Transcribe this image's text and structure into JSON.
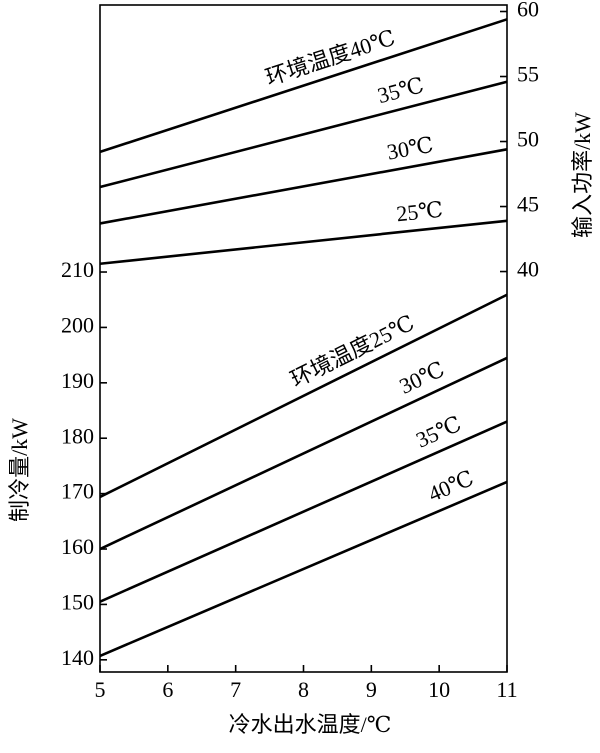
{
  "chart_data": {
    "type": "line",
    "x_label": "冷水出水温度/℃",
    "y_label": "制冷量/kW",
    "y2_label": "输入功率/kW",
    "x": [
      5,
      11
    ],
    "xlim": [
      5,
      11
    ],
    "xticks": [
      5,
      6,
      7,
      8,
      9,
      10,
      11
    ],
    "ylim": [
      137.8,
      258.2
    ],
    "yticks": [
      140,
      150,
      160,
      170,
      180,
      190,
      200,
      210
    ],
    "y2lim": [
      9.2,
      60.5
    ],
    "y2ticks": [
      40,
      45,
      50,
      55,
      60
    ],
    "series": [
      {
        "name": "环境温度40℃",
        "color": "#000000",
        "axis": "y2",
        "values": [
          49.2,
          59.4
        ]
      },
      {
        "name": "35℃",
        "color": "#000000",
        "axis": "y2",
        "values": [
          46.5,
          54.6
        ]
      },
      {
        "name": "30℃",
        "color": "#000000",
        "axis": "y2",
        "values": [
          43.7,
          49.4
        ]
      },
      {
        "name": "25℃",
        "color": "#000000",
        "axis": "y2",
        "values": [
          40.6,
          43.9
        ]
      },
      {
        "name": "环境温度25℃",
        "color": "#000000",
        "values": [
          169.4,
          205.9
        ]
      },
      {
        "name": "30℃",
        "color": "#000000",
        "values": [
          160.0,
          194.5
        ]
      },
      {
        "name": "35℃",
        "color": "#000000",
        "values": [
          150.5,
          183.0
        ]
      },
      {
        "name": "40℃",
        "color": "#000000",
        "values": [
          140.7,
          172.1
        ]
      }
    ]
  }
}
